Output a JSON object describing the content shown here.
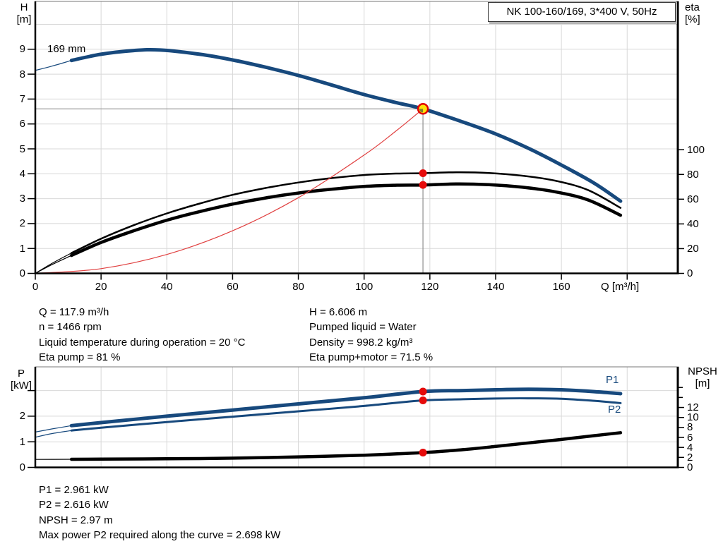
{
  "colors": {
    "blue": "#17497d",
    "black": "#000000",
    "red_curve": "#e04040",
    "dot_red": "#e60b0b",
    "marker_yellow": "#ffe20a",
    "marker_ring": "#e10000",
    "marker_wedge": "#6b6b35",
    "grid": "#d8d8d8",
    "crosshair": "#8f8f8f",
    "frame": "#000000",
    "frame_light": "#777777"
  },
  "title_box": {
    "label": "NK 100-160/169, 3*400 V, 50Hz"
  },
  "top_chart": {
    "y_left": {
      "line1": "H",
      "line2": "[m]"
    },
    "y_right": {
      "line1": "eta",
      "line2": "[%]"
    },
    "x_label": "Q [m³/h]",
    "curve_label": "169 mm"
  },
  "bottom_chart": {
    "y_left": {
      "line1": "P",
      "line2": "[kW]"
    },
    "y_right": {
      "line1": "NPSH",
      "line2": "[m]"
    },
    "p1_label": "P1",
    "p2_label": "P2"
  },
  "info_top_left": [
    "Q = 117.9 m³/h",
    "n = 1466 rpm",
    "Liquid temperature during operation = 20 °C",
    "Eta pump = 81 %"
  ],
  "info_top_right": [
    "H = 6.606 m",
    "Pumped liquid = Water",
    "Density = 998.2 kg/m³",
    "Eta pump+motor = 71.5 %"
  ],
  "info_bottom": [
    "P1 = 2.961 kW",
    "P2 = 2.616 kW",
    "NPSH = 2.97 m",
    "Max power P2 required along the curve = 2.698 kW"
  ],
  "chart_data": [
    {
      "type": "line",
      "title": "NK 100-160/169, 3*400 V, 50Hz",
      "xlabel": "Q [m³/h]",
      "x_ticks": [
        0,
        20,
        40,
        60,
        80,
        100,
        120,
        140,
        160
      ],
      "x_range": [
        0,
        195.7
      ],
      "left_axis": {
        "label": "H [m]",
        "ticks": [
          0,
          1,
          2,
          3,
          4,
          5,
          6,
          7,
          8,
          9
        ],
        "range": [
          0,
          10.9
        ]
      },
      "right_axis": {
        "label": "eta [%]",
        "ticks": [
          0,
          20,
          40,
          60,
          80,
          100
        ],
        "range": [
          0,
          100
        ]
      },
      "grid": true,
      "series": [
        {
          "name": "pump curve 169 mm",
          "axis": "left",
          "color_key": "blue",
          "lw": 5,
          "thin_until": 11,
          "points": [
            [
              0,
              8.15
            ],
            [
              5,
              8.32
            ],
            [
              11,
              8.55
            ],
            [
              20,
              8.8
            ],
            [
              30,
              8.95
            ],
            [
              38,
              8.97
            ],
            [
              50,
              8.8
            ],
            [
              60,
              8.57
            ],
            [
              70,
              8.28
            ],
            [
              80,
              7.95
            ],
            [
              90,
              7.57
            ],
            [
              100,
              7.18
            ],
            [
              110,
              6.85
            ],
            [
              117.9,
              6.606
            ],
            [
              130,
              6.08
            ],
            [
              140,
              5.6
            ],
            [
              150,
              5.02
            ],
            [
              160,
              4.35
            ],
            [
              170,
              3.62
            ],
            [
              178,
              2.9
            ]
          ]
        },
        {
          "name": "eta pump",
          "axis": "right",
          "color_key": "black",
          "lw": 2.5,
          "thin_until": 11,
          "points": [
            [
              0,
              0
            ],
            [
              5,
              8
            ],
            [
              11,
              16.5
            ],
            [
              20,
              28
            ],
            [
              30,
              39
            ],
            [
              40,
              48.5
            ],
            [
              50,
              56.5
            ],
            [
              60,
              63.5
            ],
            [
              70,
              69
            ],
            [
              80,
              73.5
            ],
            [
              90,
              77
            ],
            [
              100,
              79.5
            ],
            [
              110,
              80.7
            ],
            [
              117.9,
              81
            ],
            [
              128,
              81.8
            ],
            [
              138,
              81.2
            ],
            [
              148,
              79
            ],
            [
              158,
              75
            ],
            [
              168,
              67.5
            ],
            [
              178,
              53
            ]
          ]
        },
        {
          "name": "eta pump+motor",
          "axis": "right",
          "color_key": "black",
          "lw": 4.5,
          "thin_until": 11,
          "points": [
            [
              0,
              0
            ],
            [
              5,
              7
            ],
            [
              11,
              14.5
            ],
            [
              20,
              25
            ],
            [
              30,
              34.5
            ],
            [
              40,
              43
            ],
            [
              50,
              50
            ],
            [
              60,
              56
            ],
            [
              70,
              61
            ],
            [
              80,
              65
            ],
            [
              90,
              68
            ],
            [
              100,
              70.3
            ],
            [
              110,
              71.3
            ],
            [
              117.9,
              71.5
            ],
            [
              128,
              72.3
            ],
            [
              138,
              71.7
            ],
            [
              148,
              69.7
            ],
            [
              158,
              66
            ],
            [
              168,
              59.5
            ],
            [
              178,
              47
            ]
          ]
        },
        {
          "name": "system curve",
          "axis": "left",
          "color_key": "red_curve",
          "lw": 1.2,
          "thin_until": 999,
          "points": [
            [
              0,
              0
            ],
            [
              20,
              0.19
            ],
            [
              40,
              0.76
            ],
            [
              60,
              1.71
            ],
            [
              80,
              3.04
            ],
            [
              100,
              4.75
            ],
            [
              110,
              5.75
            ],
            [
              117.9,
              6.606
            ]
          ]
        }
      ],
      "operating_point": {
        "Q": 117.9,
        "H": 6.606
      },
      "marked_points": [
        {
          "series": "eta pump",
          "Q": 117.9,
          "value": 81
        },
        {
          "series": "eta pump+motor",
          "Q": 117.9,
          "value": 71.5
        }
      ]
    },
    {
      "type": "line",
      "x_range": [
        0,
        195.7
      ],
      "left_axis": {
        "label": "P [kW]",
        "ticks": [
          0,
          1,
          2
        ],
        "unlabeled_ticks": [
          3
        ],
        "range": [
          0,
          3.9
        ]
      },
      "right_axis": {
        "label": "NPSH [m]",
        "ticks": [
          0,
          2,
          4,
          6,
          8,
          10,
          12
        ],
        "unlabeled_ticks": [
          14,
          16
        ],
        "range": [
          0,
          20
        ]
      },
      "grid": true,
      "series": [
        {
          "name": "P1",
          "axis": "left",
          "color_key": "blue",
          "lw": 5,
          "thin_until": 11,
          "points": [
            [
              0,
              1.38
            ],
            [
              5,
              1.5
            ],
            [
              11,
              1.63
            ],
            [
              20,
              1.75
            ],
            [
              40,
              2.0
            ],
            [
              60,
              2.24
            ],
            [
              80,
              2.48
            ],
            [
              100,
              2.72
            ],
            [
              117.9,
              2.961
            ],
            [
              130,
              3.0
            ],
            [
              140,
              3.03
            ],
            [
              150,
              3.05
            ],
            [
              160,
              3.03
            ],
            [
              170,
              2.96
            ],
            [
              178,
              2.88
            ]
          ]
        },
        {
          "name": "P2",
          "axis": "left",
          "color_key": "blue",
          "lw": 3,
          "thin_until": 11,
          "points": [
            [
              0,
              1.18
            ],
            [
              5,
              1.32
            ],
            [
              11,
              1.44
            ],
            [
              20,
              1.55
            ],
            [
              40,
              1.77
            ],
            [
              60,
              1.98
            ],
            [
              80,
              2.19
            ],
            [
              100,
              2.4
            ],
            [
              117.9,
              2.616
            ],
            [
              130,
              2.66
            ],
            [
              140,
              2.69
            ],
            [
              150,
              2.698
            ],
            [
              160,
              2.68
            ],
            [
              170,
              2.6
            ],
            [
              178,
              2.51
            ]
          ]
        },
        {
          "name": "NPSH",
          "axis": "right",
          "color_key": "black",
          "lw": 4.5,
          "thin_until": 11,
          "points": [
            [
              0,
              1.6
            ],
            [
              11,
              1.62
            ],
            [
              20,
              1.65
            ],
            [
              40,
              1.72
            ],
            [
              60,
              1.85
            ],
            [
              80,
              2.1
            ],
            [
              100,
              2.45
            ],
            [
              117.9,
              2.97
            ],
            [
              130,
              3.55
            ],
            [
              140,
              4.2
            ],
            [
              150,
              4.9
            ],
            [
              160,
              5.6
            ],
            [
              170,
              6.35
            ],
            [
              178,
              6.95
            ]
          ]
        }
      ],
      "marked_points": [
        {
          "series": "P1",
          "Q": 117.9,
          "value": 2.961
        },
        {
          "series": "P2",
          "Q": 117.9,
          "value": 2.616
        },
        {
          "series": "NPSH",
          "Q": 117.9,
          "value": 2.97
        }
      ]
    }
  ]
}
